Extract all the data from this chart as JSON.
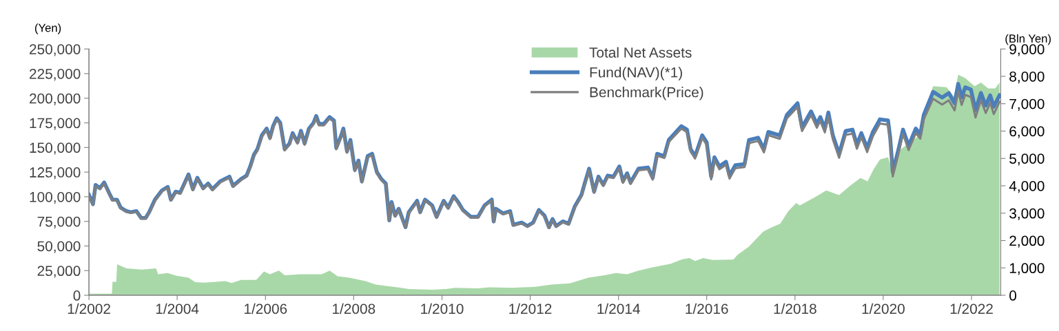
{
  "chart_data": {
    "type": "line",
    "ylabel": "(Yen)",
    "y2label": "(Bln Yen)",
    "xlim": [
      "2002-01-01",
      "2022-08-31"
    ],
    "xticks": [
      {
        "value": "2002-01-01",
        "label": "1/2002"
      },
      {
        "value": "2004-01-01",
        "label": "1/2004"
      },
      {
        "value": "2006-01-01",
        "label": "1/2006"
      },
      {
        "value": "2008-01-01",
        "label": "1/2008"
      },
      {
        "value": "2010-01-01",
        "label": "1/2010"
      },
      {
        "value": "2012-01-01",
        "label": "1/2012"
      },
      {
        "value": "2014-01-01",
        "label": "1/2014"
      },
      {
        "value": "2016-01-01",
        "label": "1/2016"
      },
      {
        "value": "2018-01-01",
        "label": "1/2018"
      },
      {
        "value": "2020-01-01",
        "label": "1/2020"
      },
      {
        "value": "2022-01-01",
        "label": "1/2022"
      }
    ],
    "ylim": [
      0,
      250000
    ],
    "yticks": [
      0,
      {
        "value": 25000,
        "label": "25,000"
      },
      {
        "value": 50000,
        "label": "50,000"
      },
      {
        "value": 75000,
        "label": "75,000"
      },
      {
        "value": 100000,
        "label": "100,000"
      },
      {
        "value": 125000,
        "label": "125,000"
      },
      {
        "value": 150000,
        "label": "150,000"
      },
      {
        "value": 175000,
        "label": "175,000"
      },
      {
        "value": 200000,
        "label": "200,000"
      },
      {
        "value": 225000,
        "label": "225,000"
      },
      {
        "value": 250000,
        "label": "250,000"
      }
    ],
    "y2lim": [
      0,
      9000
    ],
    "y2ticks": [
      0,
      {
        "value": 1000,
        "label": "1,000"
      },
      {
        "value": 2000,
        "label": "2,000"
      },
      {
        "value": 3000,
        "label": "3,000"
      },
      {
        "value": 4000,
        "label": "4,000"
      },
      {
        "value": 5000,
        "label": "5,000"
      },
      {
        "value": 6000,
        "label": "6,000"
      },
      {
        "value": 7000,
        "label": "7,000"
      },
      {
        "value": 8000,
        "label": "8,000"
      },
      {
        "value": 9000,
        "label": "9,000"
      }
    ],
    "grid": false,
    "legend": "top",
    "marker": "none",
    "line_style": "solid",
    "x": [
      "2002-01-01",
      "2002-02-03",
      "2002-02-25",
      "2002-04-01",
      "2002-05-07",
      "2002-06-16",
      "2002-07-15",
      "2002-08-21",
      "2002-09-20",
      "2002-11-07",
      "2002-12-13",
      "2003-01-29",
      "2003-03-09",
      "2003-04-15",
      "2003-05-14",
      "2003-07-01",
      "2003-08-28",
      "2003-10-15",
      "2003-11-10",
      "2003-12-20",
      "2004-01-26",
      "2004-03-05",
      "2004-04-04",
      "2004-05-10",
      "2004-06-16",
      "2004-08-03",
      "2004-09-13",
      "2004-10-19",
      "2004-12-23",
      "2005-03-09",
      "2005-04-08",
      "2005-06-13",
      "2005-07-29",
      "2005-08-28",
      "2005-09-27",
      "2005-10-26",
      "2005-12-02",
      "2006-01-11",
      "2006-02-07",
      "2006-03-05",
      "2006-04-04",
      "2006-05-03",
      "2006-06-09",
      "2006-07-19",
      "2006-08-14",
      "2006-09-23",
      "2006-10-22",
      "2006-11-21",
      "2006-12-27",
      "2007-02-03",
      "2007-02-25",
      "2007-03-20",
      "2007-04-29",
      "2007-06-16",
      "2007-07-22",
      "2007-08-10",
      "2007-09-20",
      "2007-10-08",
      "2007-11-07",
      "2007-12-05",
      "2008-01-11",
      "2008-02-10",
      "2008-03-09",
      "2008-04-26",
      "2008-06-02",
      "2008-07-11",
      "2008-08-17",
      "2008-09-23",
      "2008-10-22",
      "2008-11-10",
      "2008-12-09",
      "2009-01-08",
      "2009-03-05",
      "2009-04-01",
      "2009-06-09",
      "2009-07-04",
      "2009-08-14",
      "2009-10-11",
      "2009-11-17",
      "2010-01-15",
      "2010-02-21",
      "2010-04-08",
      "2010-05-14",
      "2010-06-23",
      "2010-08-28",
      "2010-10-26",
      "2010-12-20",
      "2011-02-17",
      "2011-03-05",
      "2011-03-23",
      "2011-05-21",
      "2011-07-19",
      "2011-08-14",
      "2011-10-22",
      "2011-12-09",
      "2012-01-26",
      "2012-03-13",
      "2012-04-29",
      "2012-06-05",
      "2012-07-04",
      "2012-08-03",
      "2012-09-27",
      "2012-11-14",
      "2013-01-04",
      "2013-02-28",
      "2013-03-27",
      "2013-05-03",
      "2013-06-13",
      "2013-07-19",
      "2013-08-28",
      "2013-10-04",
      "2013-11-21",
      "2014-01-08",
      "2014-02-07",
      "2014-03-13",
      "2014-04-11",
      "2014-06-16",
      "2014-09-02",
      "2014-10-11",
      "2014-11-17",
      "2015-01-15",
      "2015-02-21",
      "2015-03-27",
      "2015-06-05",
      "2015-07-22",
      "2015-08-21",
      "2015-09-27",
      "2015-11-25",
      "2016-01-01",
      "2016-02-07",
      "2016-03-05",
      "2016-04-15",
      "2016-06-09",
      "2016-07-08",
      "2016-08-25",
      "2016-11-10",
      "2016-12-16",
      "2017-03-02",
      "2017-04-19",
      "2017-05-25",
      "2017-08-28",
      "2017-10-26",
      "2018-01-22",
      "2018-02-28",
      "2018-05-14",
      "2018-07-01",
      "2018-07-29",
      "2018-09-05",
      "2018-10-04",
      "2018-11-10",
      "2019-01-01",
      "2019-02-25",
      "2019-04-22",
      "2019-05-28",
      "2019-07-04",
      "2019-08-21",
      "2019-10-08",
      "2019-12-05",
      "2020-02-10",
      "2020-02-28",
      "2020-03-20",
      "2020-05-07",
      "2020-06-13",
      "2020-07-29",
      "2020-09-27",
      "2020-11-03",
      "2020-12-02",
      "2021-02-17",
      "2021-05-03",
      "2021-06-27",
      "2021-08-14",
      "2021-09-13",
      "2021-10-11",
      "2021-11-10",
      "2021-12-27",
      "2022-02-03",
      "2022-03-20",
      "2022-04-29",
      "2022-06-05",
      "2022-07-04",
      "2022-08-21"
    ],
    "series": [
      {
        "name": "Total Net Assets",
        "type": "area",
        "axis": "y2",
        "color": "#a9d8a8",
        "x": [
          "2002-01-01",
          "2002-07-10",
          "2002-07-15",
          "2002-08-15",
          "2002-08-22",
          "2002-11-07",
          "2003-03-17",
          "2003-07-10",
          "2003-07-28",
          "2003-10-15",
          "2003-12-28",
          "2004-04-04",
          "2004-05-30",
          "2004-08-15",
          "2004-10-12",
          "2005-02-03",
          "2005-03-28",
          "2005-06-13",
          "2005-10-16",
          "2005-12-20",
          "2006-02-07",
          "2006-04-22",
          "2006-06-09",
          "2006-10-22",
          "2007-04-12",
          "2007-06-16",
          "2007-08-22",
          "2007-11-25",
          "2008-04-08",
          "2008-07-01",
          "2008-10-16",
          "2009-01-08",
          "2009-04-01",
          "2009-10-11",
          "2010-02-04",
          "2010-04-20",
          "2010-10-26",
          "2011-01-30",
          "2011-08-08",
          "2012-02-14",
          "2012-06-25",
          "2012-11-25",
          "2013-04-26",
          "2013-09-06",
          "2013-12-10",
          "2014-03-13",
          "2014-06-16",
          "2014-10-11",
          "2015-03-10",
          "2015-06-13",
          "2015-08-10",
          "2015-09-27",
          "2015-12-02",
          "2016-02-18",
          "2016-08-08",
          "2016-09-13",
          "2016-12-16",
          "2017-04-12",
          "2017-06-05",
          "2017-09-01",
          "2017-11-07",
          "2018-01-11",
          "2018-02-10",
          "2018-06-13",
          "2018-09-17",
          "2019-01-01",
          "2019-04-01",
          "2019-06-27",
          "2019-08-25",
          "2019-10-11",
          "2019-12-05",
          "2020-02-10",
          "2020-03-20",
          "2020-05-26",
          "2020-08-10",
          "2020-10-26",
          "2020-12-02",
          "2021-02-17",
          "2021-06-09",
          "2021-08-08",
          "2021-09-13",
          "2021-11-10",
          "2022-01-26",
          "2022-03-20",
          "2022-05-19",
          "2022-07-16",
          "2022-08-21"
        ],
        "values": [
          60,
          60,
          490,
          490,
          1130,
          980,
          940,
          980,
          770,
          810,
          710,
          645,
          480,
          460,
          480,
          520,
          450,
          560,
          560,
          870,
          770,
          900,
          730,
          770,
          770,
          900,
          690,
          645,
          520,
          390,
          330,
          285,
          225,
          200,
          225,
          270,
          250,
          290,
          270,
          310,
          390,
          435,
          645,
          730,
          810,
          770,
          900,
          1020,
          1150,
          1315,
          1360,
          1250,
          1360,
          1290,
          1300,
          1480,
          1780,
          2320,
          2450,
          2615,
          3075,
          3370,
          3285,
          3580,
          3830,
          3660,
          4000,
          4290,
          4165,
          4585,
          4960,
          5045,
          4500,
          5340,
          5590,
          5840,
          6595,
          7640,
          7600,
          7265,
          8060,
          7935,
          7640,
          7770,
          7560,
          7560,
          7770
        ]
      },
      {
        "name": "Fund(NAV)(*1)",
        "color": "#4a7ebb",
        "values": [
          102000,
          92400,
          112000,
          108700,
          114500,
          104000,
          97000,
          97000,
          89000,
          85400,
          84300,
          85400,
          78500,
          78500,
          84300,
          97000,
          106400,
          110000,
          97000,
          105200,
          104000,
          114500,
          122700,
          107600,
          119200,
          108700,
          113400,
          107600,
          115700,
          120400,
          111000,
          118000,
          121500,
          130800,
          142500,
          148300,
          162300,
          169200,
          159900,
          171600,
          179700,
          175100,
          148300,
          154100,
          164600,
          155300,
          166900,
          154100,
          169200,
          175100,
          182000,
          173900,
          173900,
          180900,
          177400,
          149500,
          162300,
          169200,
          146000,
          157600,
          127300,
          136700,
          115700,
          141300,
          143600,
          125000,
          118000,
          113400,
          76100,
          94700,
          80800,
          87800,
          69100,
          84300,
          95900,
          84300,
          97100,
          91300,
          79600,
          95900,
          88900,
          100600,
          94700,
          86600,
          79600,
          79600,
          91300,
          97100,
          75000,
          87800,
          83100,
          85400,
          71500,
          73800,
          70300,
          73800,
          86600,
          80800,
          69100,
          77300,
          70300,
          75000,
          72600,
          90100,
          101700,
          113400,
          128500,
          105200,
          120400,
          112200,
          121500,
          120400,
          130800,
          115700,
          123800,
          114500,
          128500,
          129700,
          119200,
          143600,
          141300,
          157600,
          162300,
          171600,
          168100,
          148300,
          141300,
          162300,
          155300,
          120400,
          140100,
          130800,
          135500,
          121500,
          132000,
          133200,
          157600,
          159900,
          148300,
          165800,
          162300,
          183200,
          194900,
          170400,
          186700,
          173900,
          180900,
          169200,
          185500,
          162300,
          143600,
          166900,
          168100,
          152900,
          164600,
          149500,
          165800,
          178600,
          177400,
          159900,
          125000,
          148300,
          168100,
          151800,
          169200,
          163400,
          183200,
          206500,
          200700,
          205300,
          194900,
          214600,
          200700,
          211100,
          208800,
          187900,
          205300,
          192500,
          203000,
          191400,
          203000
        ]
      },
      {
        "name": "Benchmark(Price)",
        "color": "#7f7f7f",
        "values": [
          101000,
          91600,
          111000,
          107800,
          113500,
          103200,
          96200,
          96200,
          88200,
          84700,
          83600,
          84600,
          77800,
          77700,
          83500,
          96000,
          105400,
          109000,
          96200,
          104200,
          103000,
          113400,
          121600,
          106600,
          118100,
          107700,
          112400,
          106600,
          114600,
          119300,
          110000,
          116900,
          120400,
          129600,
          141200,
          147000,
          160900,
          167800,
          158500,
          170100,
          178200,
          173600,
          147000,
          152800,
          163200,
          154000,
          165500,
          152800,
          167800,
          173600,
          180500,
          172400,
          172400,
          179400,
          175900,
          148100,
          160900,
          167700,
          144600,
          156200,
          126000,
          135400,
          114500,
          140000,
          142300,
          123800,
          116800,
          112200,
          75200,
          93700,
          79900,
          86900,
          68300,
          83300,
          94900,
          83400,
          96100,
          90300,
          78700,
          94900,
          87900,
          99600,
          93700,
          85600,
          78700,
          78700,
          90300,
          96100,
          74100,
          86900,
          82100,
          84400,
          70600,
          72900,
          69400,
          72900,
          85600,
          79800,
          68200,
          76300,
          69400,
          74100,
          71700,
          89000,
          100500,
          112100,
          127100,
          103900,
          119000,
          110800,
          120000,
          118900,
          129200,
          114100,
          122200,
          112900,
          126800,
          127900,
          117400,
          141700,
          139300,
          155500,
          160100,
          169200,
          165600,
          145800,
          138800,
          159700,
          152600,
          117600,
          137300,
          127900,
          132500,
          118500,
          129000,
          130100,
          154400,
          156600,
          145000,
          162400,
          158800,
          179600,
          191200,
          166700,
          182900,
          170100,
          177000,
          165300,
          181600,
          158300,
          139600,
          162800,
          164000,
          148700,
          160400,
          145300,
          161500,
          174300,
          173100,
          155600,
          120600,
          144000,
          163700,
          147400,
          164700,
          158900,
          178600,
          199500,
          193500,
          197900,
          187600,
          207000,
          193200,
          203500,
          201200,
          180500,
          197800,
          185000,
          195400,
          183900,
          196400
        ]
      }
    ]
  }
}
